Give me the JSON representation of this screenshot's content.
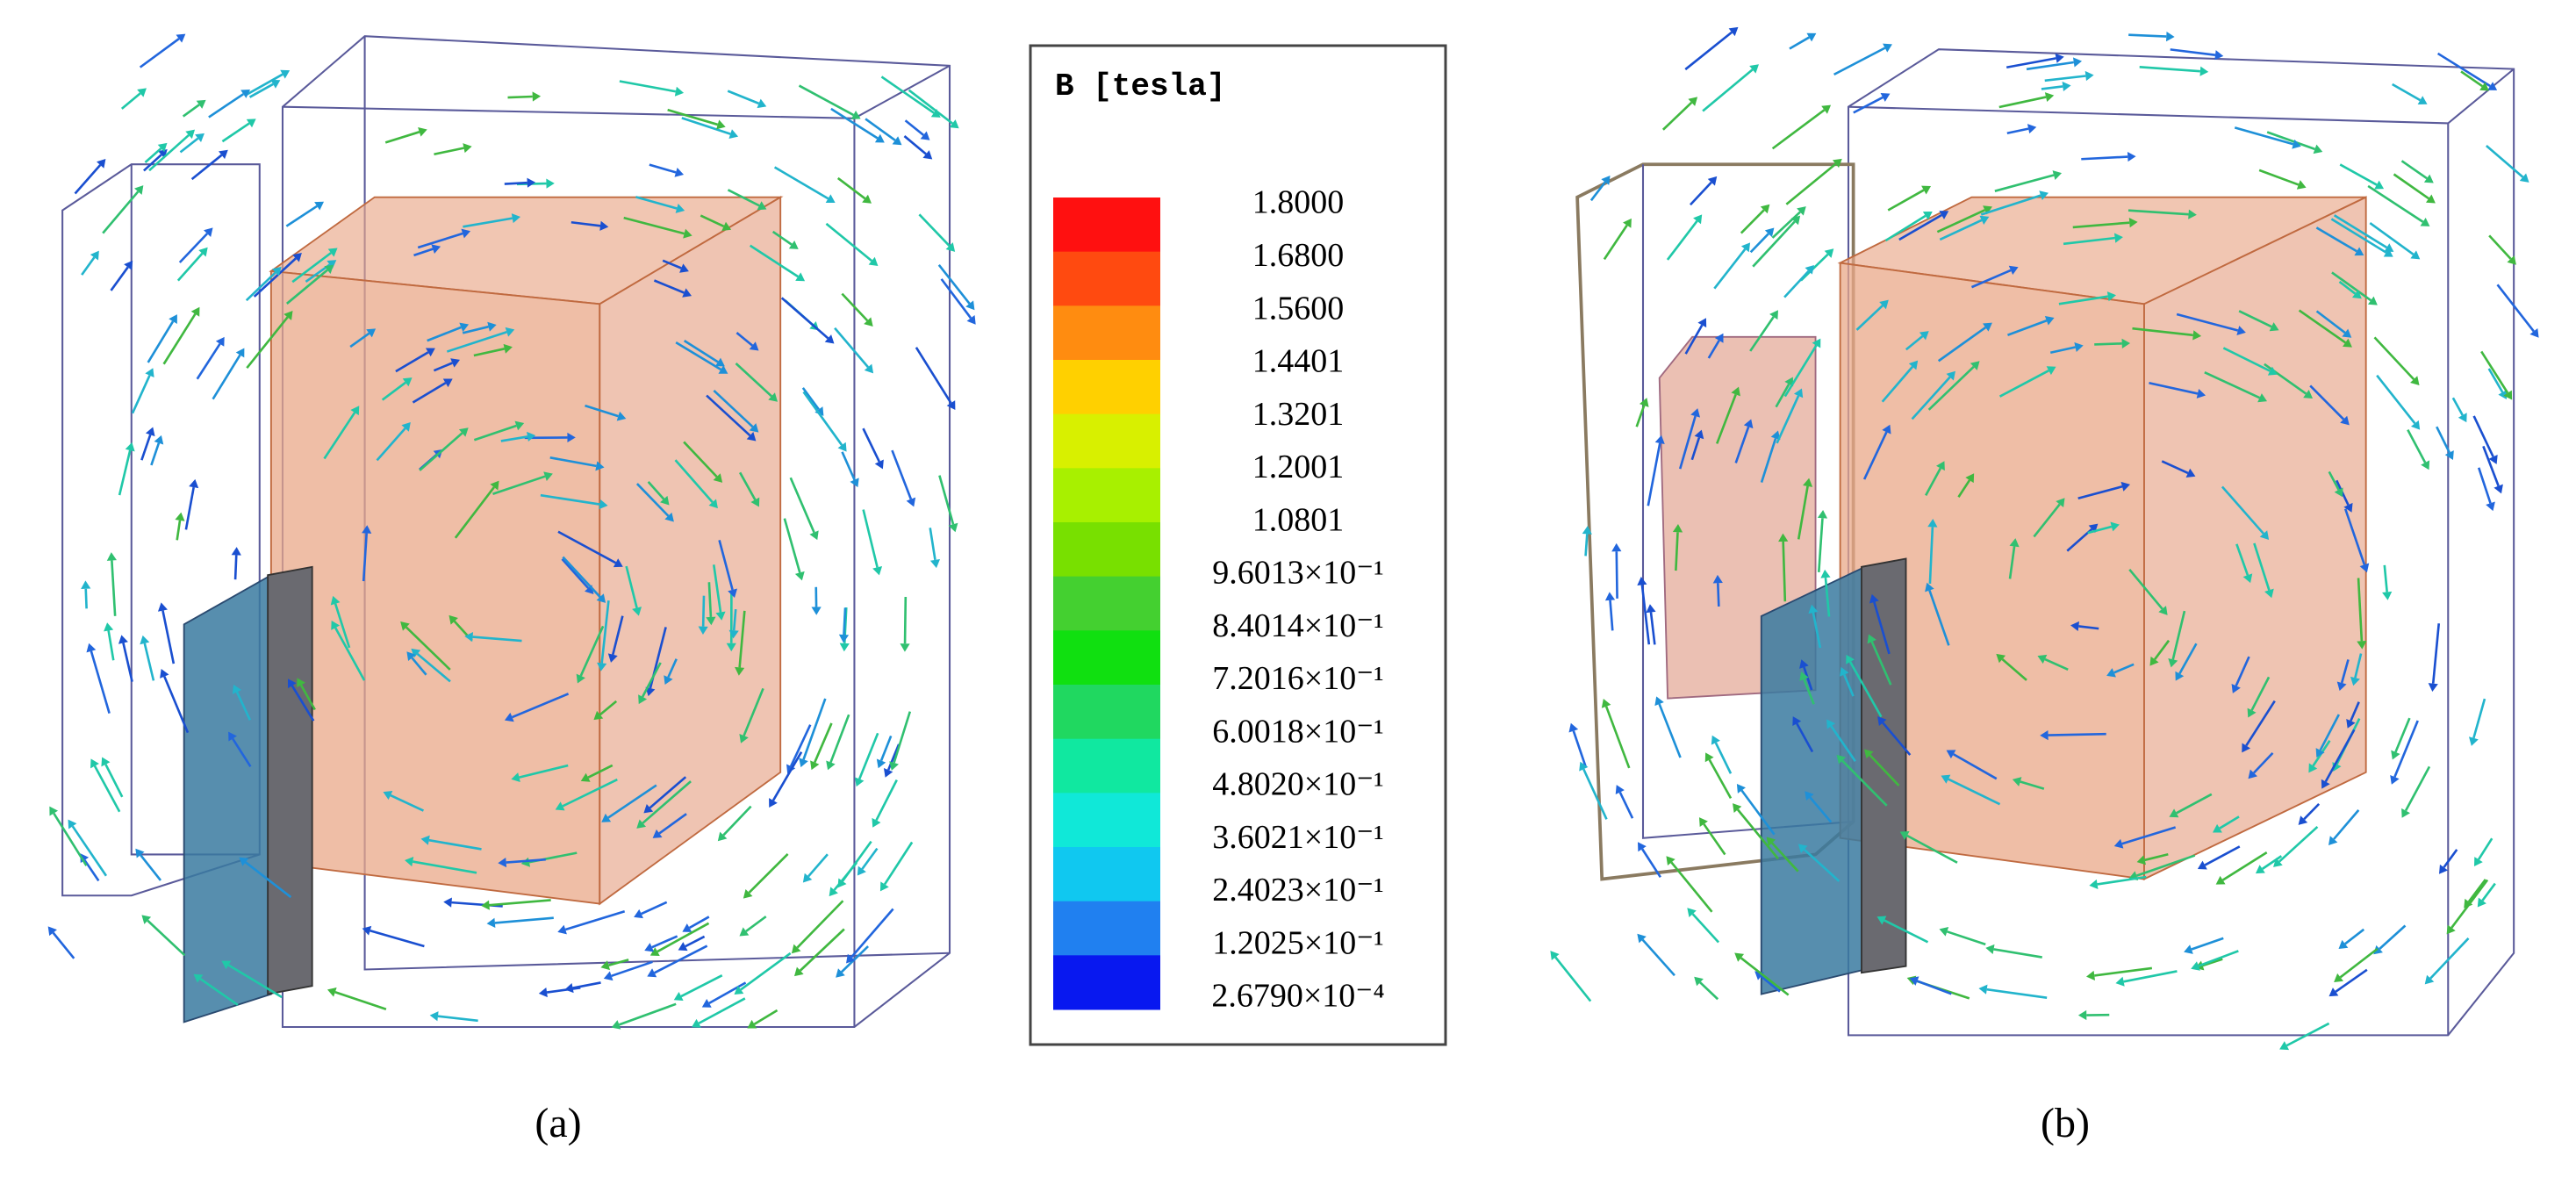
{
  "figure": {
    "legend": {
      "title": "B [tesla]",
      "labels": [
        "1.8000",
        "1.6800",
        "1.5600",
        "1.4401",
        "1.3201",
        "1.2001",
        "1.0801",
        "9.6013×10⁻¹",
        "8.4014×10⁻¹",
        "7.2016×10⁻¹",
        "6.0018×10⁻¹",
        "4.8020×10⁻¹",
        "3.6021×10⁻¹",
        "2.4023×10⁻¹",
        "1.2025×10⁻¹",
        "2.6790×10⁻⁴"
      ],
      "colors": [
        "#ff1010",
        "#ff4a10",
        "#ff8c10",
        "#ffd000",
        "#d8f000",
        "#a8f000",
        "#78e000",
        "#44d030",
        "#10e010",
        "#20d860",
        "#10e8a0",
        "#10e8d8",
        "#10c8f0",
        "#2080f0",
        "#0818f0"
      ]
    },
    "panels": [
      {
        "caption": "(a)"
      },
      {
        "caption": "(b)"
      }
    ]
  }
}
